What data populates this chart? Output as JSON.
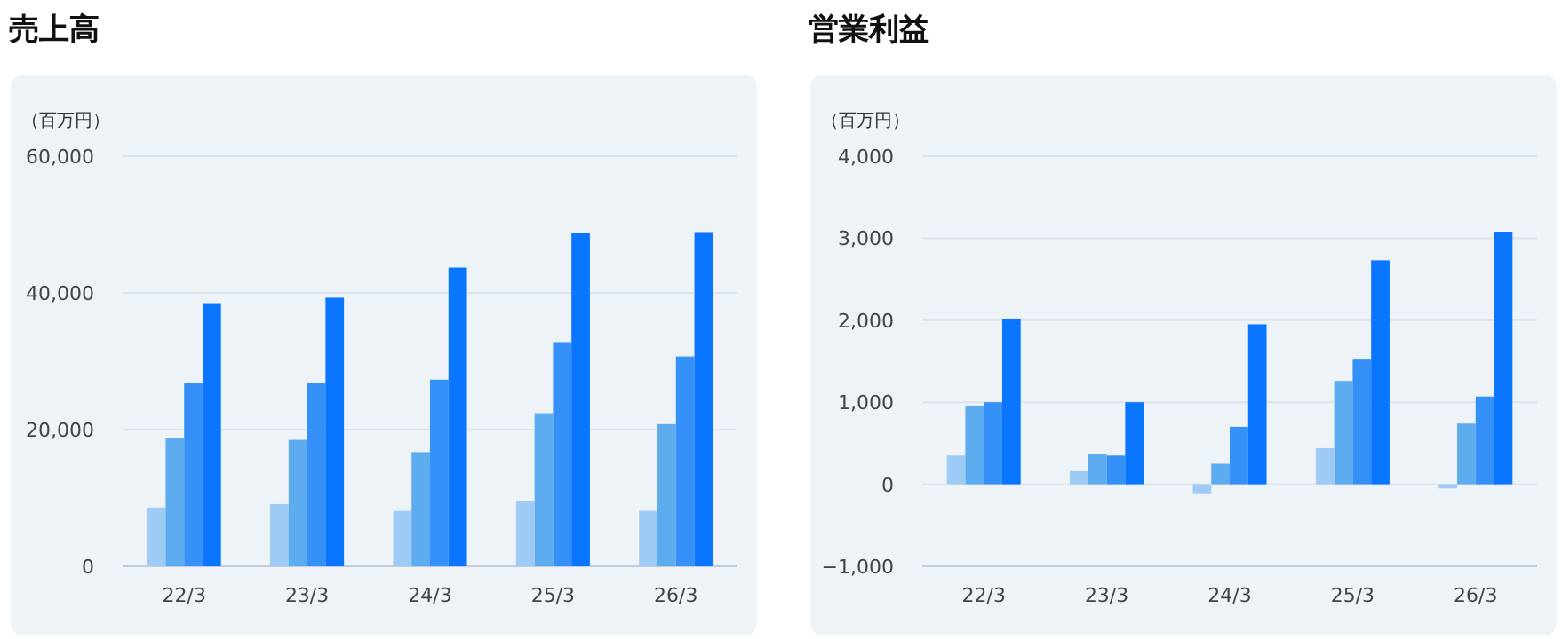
{
  "chart_data": [
    {
      "type": "bar",
      "title": "売上高",
      "ylabel": "（百万円）",
      "categories": [
        "22/3",
        "23/3",
        "24/3",
        "25/3",
        "26/3"
      ],
      "series": [
        {
          "color": "#9dcbf5",
          "values": [
            8600,
            9100,
            8100,
            9600,
            8100
          ]
        },
        {
          "color": "#5eacf0",
          "values": [
            18700,
            18500,
            16700,
            22400,
            20800
          ]
        },
        {
          "color": "#3591f7",
          "values": [
            26800,
            26800,
            27300,
            32800,
            30700
          ]
        },
        {
          "color": "#0a75ff",
          "values": [
            38500,
            39300,
            43700,
            48700,
            48900
          ]
        }
      ],
      "ylim": [
        0,
        60000
      ],
      "yticks": [
        0,
        {
          "value": 20000,
          "label": "20,000"
        },
        {
          "value": 40000,
          "label": "40,000"
        },
        {
          "value": 60000,
          "label": "60,000"
        }
      ],
      "grid": "y"
    },
    {
      "type": "bar",
      "title": "営業利益",
      "ylabel": "（百万円）",
      "categories": [
        "22/3",
        "23/3",
        "24/3",
        "25/3",
        "26/3"
      ],
      "series": [
        {
          "color": "#9dcbf5",
          "values": [
            350,
            160,
            -120,
            440,
            -50
          ]
        },
        {
          "color": "#5eacf0",
          "values": [
            960,
            370,
            250,
            1260,
            740
          ]
        },
        {
          "color": "#3591f7",
          "values": [
            1000,
            350,
            700,
            1520,
            1070
          ]
        },
        {
          "color": "#0a75ff",
          "values": [
            2020,
            1000,
            1950,
            2730,
            3080
          ]
        }
      ],
      "ylim": [
        -1000,
        4000
      ],
      "yticks": [
        {
          "value": -1000,
          "label": "−1,000"
        },
        0,
        {
          "value": 1000,
          "label": "1,000"
        },
        {
          "value": 2000,
          "label": "2,000"
        },
        {
          "value": 3000,
          "label": "3,000"
        },
        {
          "value": 4000,
          "label": "4,000"
        }
      ],
      "grid": "y"
    }
  ]
}
